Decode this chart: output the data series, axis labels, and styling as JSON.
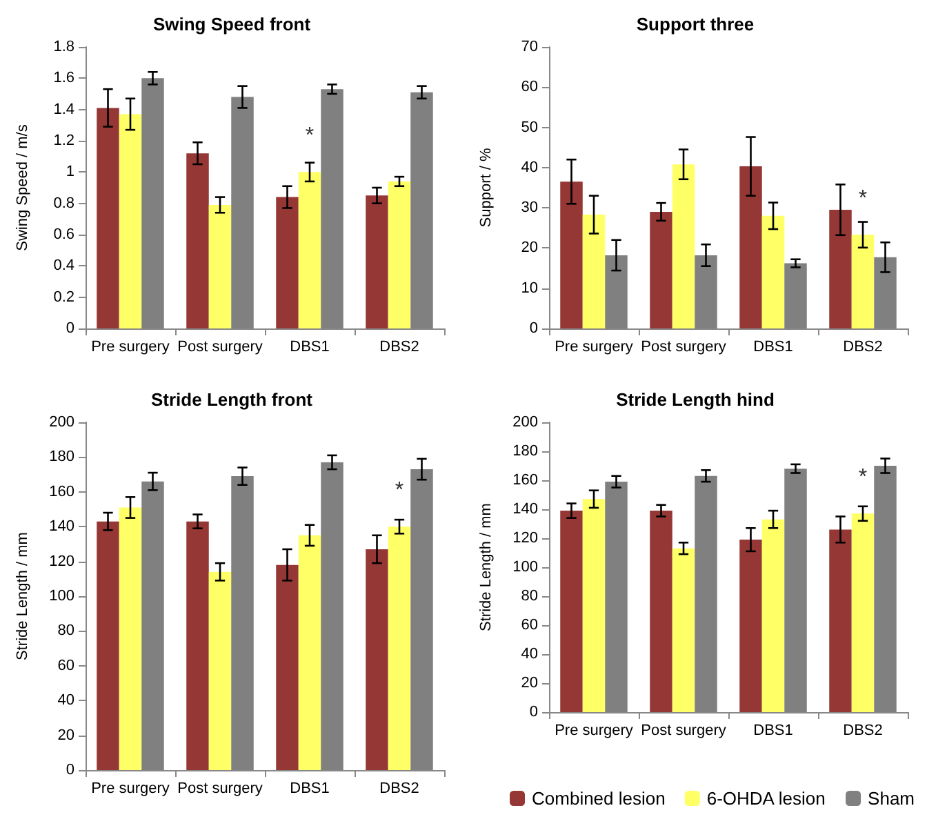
{
  "chart_data": [
    {
      "type": "bar",
      "title": "Swing Speed front",
      "ylabel": "Swing Speed / m/s",
      "categories": [
        "Pre surgery",
        "Post surgery",
        "DBS1",
        "DBS2"
      ],
      "ylim": [
        0,
        1.8
      ],
      "yticks": [
        0,
        0.2,
        0.4,
        0.6,
        0.8,
        1,
        1.2,
        1.4,
        1.6,
        1.8
      ],
      "grid": false,
      "legend": false,
      "series": [
        {
          "color": "#953735",
          "values": [
            1.41,
            1.12,
            0.84,
            0.85
          ],
          "errors": [
            0.12,
            0.07,
            0.07,
            0.05
          ]
        },
        {
          "color": "#ffff66",
          "values": [
            1.37,
            0.79,
            1.0,
            0.94
          ],
          "errors": [
            0.1,
            0.05,
            0.06,
            0.03
          ]
        },
        {
          "color": "#808080",
          "values": [
            1.6,
            1.48,
            1.53,
            1.51
          ],
          "errors": [
            0.04,
            0.07,
            0.03,
            0.04
          ]
        }
      ],
      "annotations": [
        {
          "text": "*",
          "x": "DBS1",
          "y": 1.0
        }
      ]
    },
    {
      "type": "bar",
      "title": "Support three",
      "ylabel": "Support / %",
      "categories": [
        "Pre surgery",
        "Post surgery",
        "DBS1",
        "DBS2"
      ],
      "ylim": [
        0,
        70
      ],
      "yticks": [
        0,
        10,
        20,
        30,
        40,
        50,
        60,
        70
      ],
      "grid": false,
      "legend": false,
      "series": [
        {
          "color": "#953735",
          "values": [
            36.5,
            29,
            40.3,
            29.5
          ],
          "errors": [
            5.5,
            2.2,
            7.3,
            6.3
          ]
        },
        {
          "color": "#ffff66",
          "values": [
            28.3,
            40.8,
            28,
            23.3
          ],
          "errors": [
            4.7,
            3.7,
            3.3,
            3.2
          ]
        },
        {
          "color": "#808080",
          "values": [
            18.2,
            18.2,
            16.2,
            17.7
          ],
          "errors": [
            3.8,
            2.7,
            1,
            3.7
          ]
        }
      ],
      "annotations": [
        {
          "text": "*",
          "x": "DBS2",
          "y": 23.3
        }
      ]
    },
    {
      "type": "bar",
      "title": "Stride Length front",
      "ylabel": "Stride Length / mm",
      "categories": [
        "Pre surgery",
        "Post surgery",
        "DBS1",
        "DBS2"
      ],
      "ylim": [
        0,
        200
      ],
      "yticks": [
        0,
        20,
        40,
        60,
        80,
        100,
        120,
        140,
        160,
        180,
        200
      ],
      "grid": false,
      "legend": false,
      "series": [
        {
          "color": "#953735",
          "values": [
            143,
            143,
            118,
            127
          ],
          "errors": [
            5,
            4,
            9,
            8
          ]
        },
        {
          "color": "#ffff66",
          "values": [
            151,
            114,
            135,
            140
          ],
          "errors": [
            6,
            5,
            6,
            4
          ]
        },
        {
          "color": "#808080",
          "values": [
            166,
            169,
            177,
            173
          ],
          "errors": [
            5,
            5,
            4,
            6
          ]
        }
      ],
      "annotations": [
        {
          "text": "*",
          "x": "DBS2",
          "y": 140
        }
      ]
    },
    {
      "type": "bar",
      "title": "Stride Length hind",
      "ylabel": "Stride Length / mm",
      "categories": [
        "Pre surgery",
        "Post surgery",
        "DBS1",
        "DBS2"
      ],
      "ylim": [
        0,
        200
      ],
      "yticks": [
        0,
        20,
        40,
        60,
        80,
        100,
        120,
        140,
        160,
        180,
        200
      ],
      "grid": false,
      "legend": "bottom right",
      "series": [
        {
          "name": "Combined lesion",
          "color": "#953735",
          "values": [
            139,
            139,
            119,
            126
          ],
          "errors": [
            5,
            4,
            8,
            9
          ]
        },
        {
          "name": "6-OHDA lesion",
          "color": "#ffff66",
          "values": [
            147,
            113,
            133,
            137
          ],
          "errors": [
            6,
            4,
            6,
            5
          ]
        },
        {
          "name": "Sham",
          "color": "#808080",
          "values": [
            159,
            163,
            168,
            170
          ],
          "errors": [
            4,
            4,
            3,
            5
          ]
        }
      ],
      "annotations": [
        {
          "text": "*",
          "x": "DBS2",
          "y": 137
        }
      ]
    }
  ]
}
